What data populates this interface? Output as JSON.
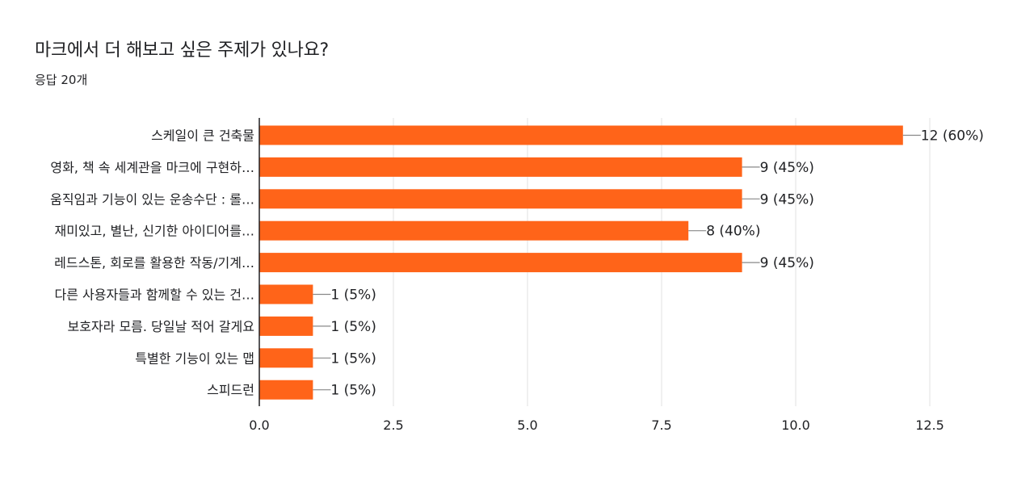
{
  "header": {
    "question": "마크에서 더 해보고 싶은 주제가 있나요?",
    "responses": "응답 20개"
  },
  "colors": {
    "bar": "#ff6419",
    "grid": "#ececec",
    "axis": "#202124",
    "connector": "#888888"
  },
  "chart_data": {
    "type": "bar",
    "orientation": "horizontal",
    "title": "마크에서 더 해보고 싶은 주제가 있나요?",
    "categories": [
      "스케일이 큰 건축물",
      "영화, 책 속 세계관을 마크에 구현하…",
      "움직임과 기능이 있는 운송수단 : 롤…",
      "재미있고, 별난, 신기한 아이디어를…",
      "레드스톤, 회로를 활용한 작동/기계…",
      "다른 사용자들과 함께할 수 있는 건…",
      "보호자라 모름. 당일날 적어 갈게요",
      "특별한 기능이 있는 맵",
      "스피드런"
    ],
    "values": [
      12,
      9,
      9,
      8,
      9,
      1,
      1,
      1,
      1
    ],
    "data_labels": [
      "12 (60%)",
      "9 (45%)",
      "9 (45%)",
      "8 (40%)",
      "9 (45%)",
      "1 (5%)",
      "1 (5%)",
      "1 (5%)",
      "1 (5%)"
    ],
    "xlim": [
      0,
      12.5
    ],
    "ticks": [
      "0.0",
      "2.5",
      "5.0",
      "7.5",
      "10.0",
      "12.5"
    ],
    "tick_values": [
      0,
      2.5,
      5,
      7.5,
      10,
      12.5
    ],
    "grid": true,
    "legend": "none"
  }
}
